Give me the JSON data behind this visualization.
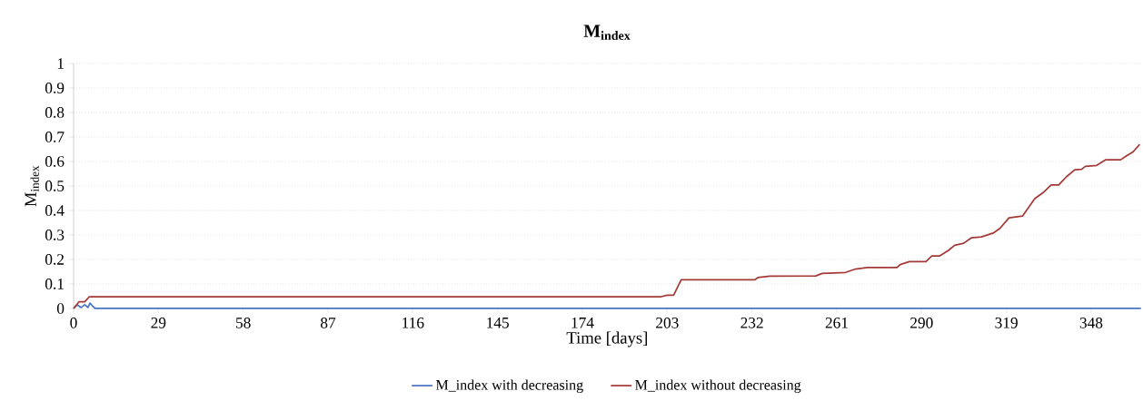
{
  "chart_data": {
    "type": "line",
    "title": "M$_{index}$",
    "xlabel": "Time [days]",
    "ylabel": "M$_{index}$",
    "xlim": [
      0,
      365
    ],
    "ylim": [
      0,
      1
    ],
    "xticks": [
      0,
      29,
      58,
      87,
      116,
      145,
      174,
      203,
      232,
      261,
      290,
      319,
      348
    ],
    "yticks": [
      0,
      0.1,
      0.2,
      0.3,
      0.4,
      0.5,
      0.6,
      0.7,
      0.8,
      0.9,
      1
    ],
    "grid": "y",
    "legend": "bottom",
    "marker": "none",
    "line_style": "solid",
    "series": [
      {
        "name": "M_index with decreasing",
        "color": "#4a74c4",
        "x": [
          0,
          1.2,
          2.6,
          3.8,
          4.9,
          5.6,
          6.4,
          7.4,
          365
        ],
        "values": [
          0,
          0.015,
          0.004,
          0.015,
          0.004,
          0.022,
          0.011,
          0,
          0
        ]
      },
      {
        "name": "M_index without decreasing",
        "color": "#a33a36",
        "x": [
          0,
          1.8,
          3.8,
          5.4,
          201,
          203,
          205.2,
          207.8,
          233,
          234,
          238.2,
          253.8,
          256,
          264,
          267.4,
          271.5,
          281.6,
          282.7,
          285.8,
          291.5,
          293.5,
          296.1,
          299.2,
          301.3,
          304.4,
          307,
          310.5,
          314.7,
          316.8,
          319.9,
          324.5,
          328.7,
          331.8,
          334.3,
          336.9,
          339.5,
          342.4,
          344.7,
          346,
          349.9,
          353,
          358.1,
          360.2,
          362.3,
          364.6
        ],
        "values": [
          0,
          0.027,
          0.027,
          0.048,
          0.048,
          0.054,
          0.054,
          0.117,
          0.117,
          0.126,
          0.132,
          0.133,
          0.143,
          0.147,
          0.161,
          0.167,
          0.167,
          0.179,
          0.191,
          0.191,
          0.214,
          0.214,
          0.237,
          0.258,
          0.266,
          0.288,
          0.292,
          0.309,
          0.327,
          0.37,
          0.377,
          0.448,
          0.475,
          0.504,
          0.504,
          0.537,
          0.566,
          0.568,
          0.58,
          0.584,
          0.607,
          0.607,
          0.624,
          0.639,
          0.67
        ]
      }
    ]
  }
}
